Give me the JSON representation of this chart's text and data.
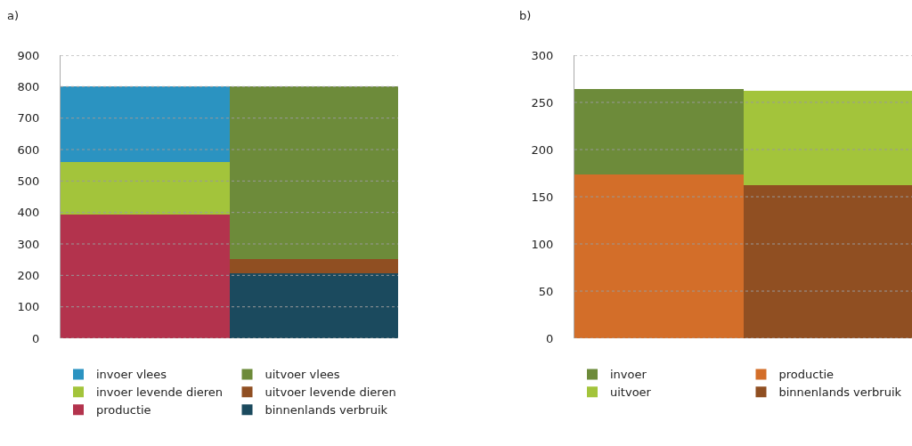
{
  "chart_data": [
    {
      "type": "bar",
      "title": "a)",
      "stacked": true,
      "categories": [
        null,
        null
      ],
      "ylim": [
        0,
        900
      ],
      "yticks": [
        0,
        100,
        200,
        300,
        400,
        500,
        600,
        700,
        800,
        900
      ],
      "grid": "y",
      "legend": "bottom",
      "tick_labels": "y",
      "series": [
        {
          "name": "binnenlands verbruik",
          "color": "#1b4a5e",
          "values": [
            null,
            208
          ]
        },
        {
          "name": "productie",
          "color": "#b3334d",
          "values": [
            394,
            null
          ]
        },
        {
          "name": "uitvoer levende dieren",
          "color": "#904f22",
          "values": [
            null,
            44
          ]
        },
        {
          "name": "invoer levende dieren",
          "color": "#a3c43b",
          "values": [
            167,
            null
          ]
        },
        {
          "name": "uitvoer vlees",
          "color": "#6d8b3a",
          "values": [
            null,
            548
          ]
        },
        {
          "name": "invoer vlees",
          "color": "#2b93c1",
          "values": [
            239,
            null
          ]
        }
      ]
    },
    {
      "type": "bar",
      "title": "b)",
      "stacked": true,
      "categories": [
        null,
        null
      ],
      "ylim": [
        0,
        300
      ],
      "yticks": [
        0,
        50,
        100,
        150,
        200,
        250,
        300
      ],
      "grid": "y",
      "legend": "bottom",
      "tick_labels": "y",
      "series": [
        {
          "name": "binnenlands verbruik",
          "color": "#904f22",
          "values": [
            null,
            162
          ]
        },
        {
          "name": "uitvoer",
          "color": "#a3c43b",
          "values": [
            null,
            100
          ]
        },
        {
          "name": "productie",
          "color": "#d36e29",
          "values": [
            174,
            null
          ]
        },
        {
          "name": "invoer",
          "color": "#6d8b3a",
          "values": [
            90,
            null
          ]
        }
      ]
    }
  ]
}
